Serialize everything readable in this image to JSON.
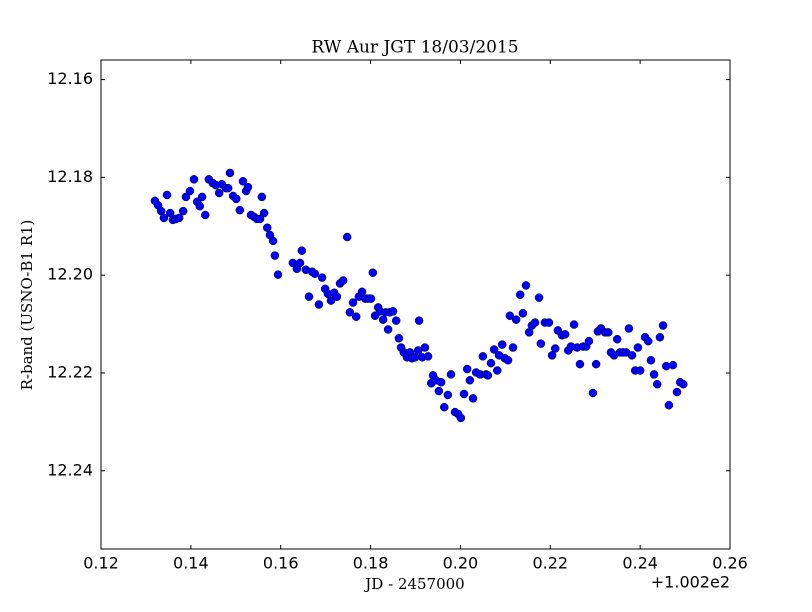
{
  "chart_data": {
    "type": "scatter",
    "title": "RW Aur JGT 18/03/2015",
    "x_label": "JD - 2457000",
    "y_label": "R-band (USNO-B1 R1)",
    "x_offset_label": "+1.002e2",
    "color": "#0000ff",
    "xlim": [
      0.12,
      0.26
    ],
    "ylim": [
      12.256,
      12.156
    ],
    "xticks": [
      0.12,
      0.14,
      0.16,
      0.18,
      {
        "value": 0.2,
        "label": "0.20"
      },
      0.22,
      0.24,
      0.26
    ],
    "yticks": [
      12.16,
      12.18,
      {
        "value": 12.2,
        "label": "12.20"
      },
      12.22,
      12.24
    ],
    "x": [
      0.132,
      0.1327,
      0.1334,
      0.134,
      0.1347,
      0.1354,
      0.136,
      0.1367,
      0.1374,
      0.1383,
      0.1389,
      0.1398,
      0.1407,
      0.1414,
      0.142,
      0.1425,
      0.1432,
      0.144,
      0.1449,
      0.1456,
      0.1463,
      0.1469,
      0.1478,
      0.1483,
      0.1487,
      0.1494,
      0.1501,
      0.1509,
      0.1516,
      0.1523,
      0.1527,
      0.1534,
      0.1541,
      0.1547,
      0.1554,
      0.1558,
      0.1563,
      0.157,
      0.1576,
      0.1583,
      0.1587,
      0.1594,
      0.1627,
      0.1636,
      0.1643,
      0.1647,
      0.1656,
      0.1663,
      0.167,
      0.1676,
      0.1685,
      0.1692,
      0.1699,
      0.1705,
      0.1712,
      0.1719,
      0.1725,
      0.1732,
      0.1739,
      0.1748,
      0.1754,
      0.1761,
      0.1768,
      0.1774,
      0.1781,
      0.1788,
      0.1794,
      0.1801,
      0.1805,
      0.181,
      0.1817,
      0.1821,
      0.1828,
      0.1834,
      0.1839,
      0.1843,
      0.185,
      0.1857,
      0.1863,
      0.1868,
      0.1874,
      0.1881,
      0.1888,
      0.1892,
      0.1899,
      0.1906,
      0.1908,
      0.1915,
      0.1921,
      0.1928,
      0.1935,
      0.1939,
      0.1946,
      0.1952,
      0.1957,
      0.1964,
      0.1972,
      0.1979,
      0.1988,
      0.1995,
      0.2001,
      0.2008,
      0.2015,
      0.2021,
      0.2028,
      0.2035,
      0.2044,
      0.205,
      0.2057,
      0.2061,
      0.2068,
      0.2075,
      0.2082,
      0.2086,
      0.2093,
      0.2099,
      0.2106,
      0.211,
      0.2117,
      0.2124,
      0.2133,
      0.2139,
      0.2146,
      0.2153,
      0.2159,
      0.2166,
      0.2175,
      0.2179,
      0.2188,
      0.2197,
      0.2204,
      0.2211,
      0.2217,
      0.2226,
      0.2233,
      0.224,
      0.2246,
      0.2253,
      0.226,
      0.2266,
      0.2273,
      0.228,
      0.2286,
      0.2295,
      0.2302,
      0.2306,
      0.2313,
      0.2322,
      0.2329,
      0.2335,
      0.2342,
      0.2349,
      0.2355,
      0.2362,
      0.2369,
      0.2375,
      0.2382,
      0.2389,
      0.2395,
      0.24,
      0.2411,
      0.2418,
      0.2424,
      0.2431,
      0.2438,
      0.2444,
      0.2451,
      0.2458,
      0.2464,
      0.2473,
      0.2482,
      0.2489,
      0.2496
    ],
    "values": [
      12.1848,
      12.1857,
      12.1869,
      12.1883,
      12.1836,
      12.1873,
      12.1887,
      12.1885,
      12.1883,
      12.1869,
      12.184,
      12.1828,
      12.1804,
      12.185,
      12.1859,
      12.184,
      12.1877,
      12.1804,
      12.1812,
      12.1816,
      12.1832,
      12.1814,
      12.1822,
      12.1822,
      12.1791,
      12.1838,
      12.1844,
      12.1867,
      12.1808,
      12.1828,
      12.182,
      12.1877,
      12.1881,
      12.1885,
      12.1885,
      12.184,
      12.1873,
      12.1903,
      12.1918,
      12.193,
      12.196,
      12.1999,
      12.1975,
      12.1987,
      12.1975,
      12.195,
      12.1989,
      12.2044,
      12.1993,
      12.1997,
      12.206,
      12.2005,
      12.2028,
      12.2038,
      12.2052,
      12.2036,
      12.2044,
      12.2017,
      12.2011,
      12.1922,
      12.2076,
      12.2056,
      12.2085,
      12.2044,
      12.2034,
      12.2048,
      12.2048,
      12.2048,
      12.1995,
      12.2083,
      12.2066,
      12.2074,
      12.2091,
      12.2076,
      12.2111,
      12.2076,
      12.2074,
      12.2093,
      12.2129,
      12.2148,
      12.2158,
      12.2168,
      12.2158,
      12.217,
      12.2168,
      12.2154,
      12.2093,
      12.2168,
      12.2148,
      12.2166,
      12.2221,
      12.2205,
      12.2215,
      12.2237,
      12.2219,
      12.227,
      12.2245,
      12.2203,
      12.228,
      12.2284,
      12.2292,
      12.2243,
      12.2192,
      12.2215,
      12.2252,
      12.2199,
      12.2203,
      12.2166,
      12.2203,
      12.2205,
      12.218,
      12.2152,
      12.2195,
      12.2164,
      12.2142,
      12.217,
      12.2174,
      12.2083,
      12.2148,
      12.2091,
      12.204,
      12.2078,
      12.2021,
      12.2117,
      12.2103,
      12.2097,
      12.2046,
      12.214,
      12.2097,
      12.2097,
      12.2164,
      12.215,
      12.2113,
      12.2123,
      12.2121,
      12.2154,
      12.2146,
      12.2101,
      12.2148,
      12.2182,
      12.2146,
      12.2146,
      12.2135,
      12.2241,
      12.2182,
      12.2115,
      12.2109,
      12.2117,
      12.2117,
      12.2158,
      12.2164,
      12.2131,
      12.2158,
      12.2158,
      12.2158,
      12.2109,
      12.2164,
      12.2195,
      12.2148,
      12.2195,
      12.2127,
      12.2135,
      12.2174,
      12.2203,
      12.2223,
      12.2127,
      12.2103,
      12.2186,
      12.2266,
      12.2184,
      12.2239,
      12.2219,
      12.2223
    ]
  }
}
